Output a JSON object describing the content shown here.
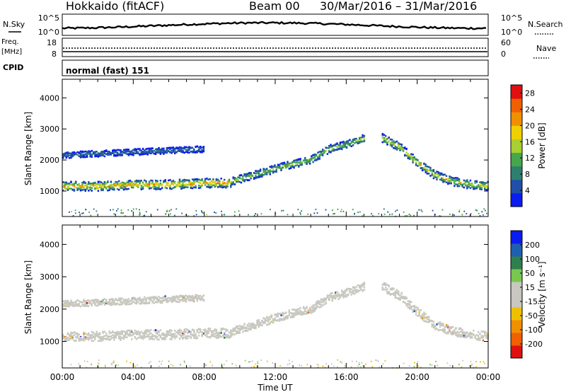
{
  "header": {
    "radar": "Hokkaido (fitACF)",
    "beam": "Beam 00",
    "dates": "30/Mar/2016 – 31/Mar/2016"
  },
  "strip": {
    "nsky_label": "N.Sky",
    "nsky_ticks": [
      "10^5",
      "10^0"
    ],
    "nsearch_label": "N.Search",
    "nsearch_ticks": [
      "10^5",
      "10^0"
    ],
    "freq_label_1": "Freq.",
    "freq_label_2": "[MHz]",
    "freq_ticks": [
      "18",
      "8"
    ],
    "nave_label": "Nave",
    "nave_ticks": [
      "60",
      "0"
    ],
    "cpid_label": "CPID",
    "cpid_value": "normal (fast) 151"
  },
  "colors": {
    "power_scale": [
      "#0a1cf0",
      "#1f4fa8",
      "#2f7f6f",
      "#46a74a",
      "#a8d030",
      "#f0d000",
      "#f09000",
      "#f06000",
      "#e01010"
    ],
    "velocity_scale": [
      "#e01010",
      "#f06000",
      "#f09000",
      "#f0c000",
      "#c8c8c0",
      "#c8c8c0",
      "#78c850",
      "#2f7f4f",
      "#1f5fb0",
      "#0a1cf0"
    ]
  },
  "chart_data": [
    {
      "type": "heatmap",
      "title": "",
      "xlabel": "Time UT",
      "ylabel": "Slant Range [km]",
      "xticks": [
        "00:00",
        "04:00",
        "08:00",
        "12:00",
        "16:00",
        "20:00",
        "00:00"
      ],
      "yticks": [
        "1000",
        "2000",
        "3000",
        "4000"
      ],
      "ylim": [
        180,
        4600
      ],
      "colorbar": {
        "label": "Power [dB]",
        "ticks": [
          "4",
          "8",
          "12",
          "16",
          "20",
          "24",
          "28"
        ],
        "range": [
          0,
          30
        ]
      },
      "bands": [
        {
          "x": [
            0,
            2,
            4,
            6,
            8,
            9.5
          ],
          "center_km": [
            1150,
            1150,
            1200,
            1200,
            1250,
            1250
          ],
          "width_km": 300,
          "peak_db": 24
        },
        {
          "x": [
            9.5,
            11,
            12.5,
            14,
            15,
            16,
            17
          ],
          "center_km": [
            1300,
            1550,
            1800,
            2000,
            2350,
            2500,
            2700
          ],
          "width_km": 250,
          "peak_db": 16
        },
        {
          "x": [
            18,
            19,
            20,
            21,
            22,
            23,
            24
          ],
          "center_km": [
            2700,
            2400,
            1900,
            1500,
            1300,
            1200,
            1150
          ],
          "width_km": 280,
          "peak_db": 20
        },
        {
          "x": [
            0,
            4,
            8
          ],
          "center_km": [
            2150,
            2250,
            2350
          ],
          "width_km": 200,
          "peak_db": 8
        }
      ]
    },
    {
      "type": "heatmap",
      "title": "",
      "xlabel": "Time UT",
      "ylabel": "Slant Range [km]",
      "xticks": [
        "00:00",
        "04:00",
        "08:00",
        "12:00",
        "16:00",
        "20:00",
        "00:00"
      ],
      "yticks": [
        "1000",
        "2000",
        "3000",
        "4000"
      ],
      "ylim": [
        180,
        4600
      ],
      "colorbar": {
        "label": "Velocity [m s⁻¹]",
        "ticks": [
          "200",
          "100",
          "50",
          "15",
          "-15",
          "-50",
          "-100",
          "-200"
        ],
        "range": [
          -250,
          250
        ]
      },
      "bands": [
        {
          "x": [
            0,
            2,
            4,
            6,
            8,
            9.5
          ],
          "center_km": [
            1150,
            1150,
            1200,
            1200,
            1250,
            1250
          ],
          "width_km": 300,
          "velocity": 0
        },
        {
          "x": [
            9.5,
            11,
            12.5,
            14,
            15,
            16,
            17
          ],
          "center_km": [
            1300,
            1550,
            1800,
            2000,
            2350,
            2500,
            2700
          ],
          "width_km": 250,
          "velocity": 0
        },
        {
          "x": [
            18,
            19,
            20,
            21,
            22,
            23,
            24
          ],
          "center_km": [
            2700,
            2400,
            1900,
            1500,
            1300,
            1200,
            1150
          ],
          "width_km": 280,
          "velocity": 20
        },
        {
          "x": [
            0,
            4,
            8
          ],
          "center_km": [
            2150,
            2250,
            2350
          ],
          "width_km": 200,
          "velocity": -30
        }
      ]
    }
  ]
}
